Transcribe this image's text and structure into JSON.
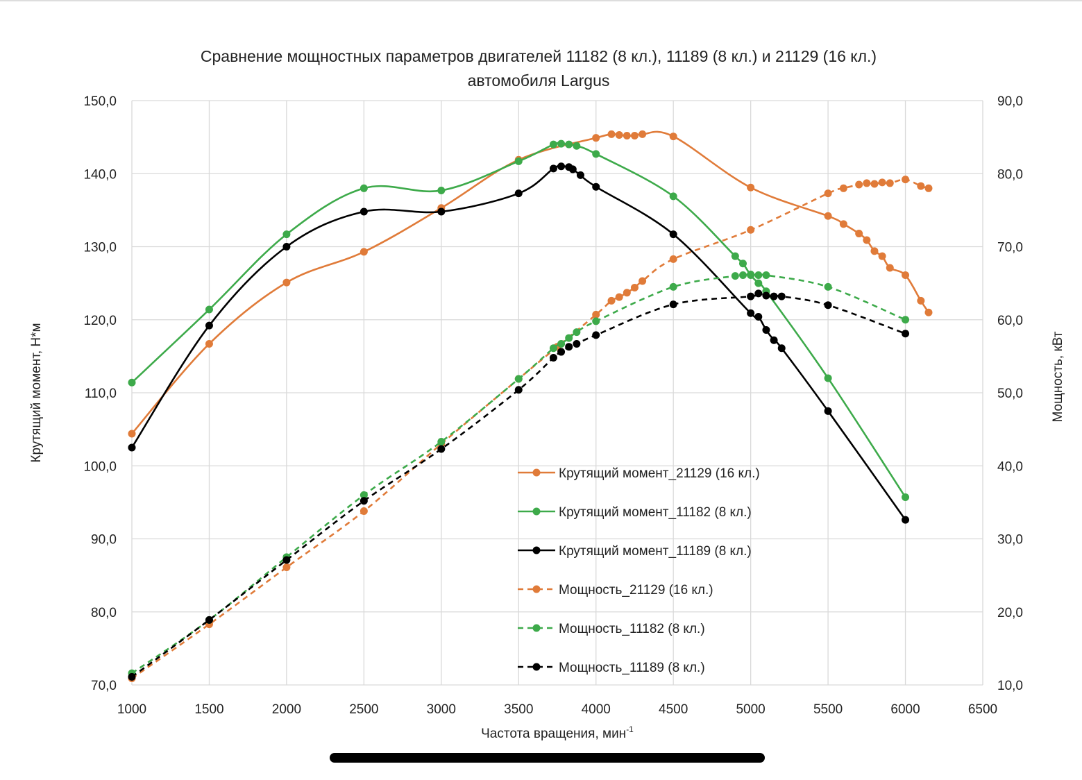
{
  "chart_data": {
    "type": "line",
    "title": [
      "Сравнение мощностных параметров двигателей 11182 (8 кл.), 11189 (8 кл.) и 21129 (16 кл.)",
      "автомобиля Largus"
    ],
    "xlabel": "Частота вращения, мин",
    "xlabel_sup": "-1",
    "ylabel": "Крутящий момент, Н*м",
    "y2label": "Мощность, кВт",
    "xlim": [
      1000,
      6500
    ],
    "ylim": [
      70,
      150
    ],
    "y2lim": [
      10,
      90
    ],
    "xticks": [
      "1000",
      "1500",
      "2000",
      "2500",
      "3000",
      "3500",
      "4000",
      "4500",
      "5000",
      "5500",
      "6000",
      "6500"
    ],
    "yticks": [
      "70,0",
      "80,0",
      "90,0",
      "100,0",
      "110,0",
      "120,0",
      "130,0",
      "140,0",
      "150,0"
    ],
    "y2ticks": [
      "10,0",
      "20,0",
      "30,0",
      "40,0",
      "50,0",
      "60,0",
      "70,0",
      "80,0",
      "90,0"
    ],
    "grid": true,
    "legend_position": "center",
    "series": [
      {
        "name": "Крутящий момент_21129 (16 кл.)",
        "axis": "left",
        "color": "#E07B39",
        "dash": false,
        "x": [
          1000,
          1500,
          2000,
          2500,
          3000,
          3500,
          4000,
          4100,
          4150,
          4200,
          4250,
          4300,
          4500,
          5000,
          5500,
          5600,
          5700,
          5750,
          5800,
          5850,
          5900,
          6000,
          6100,
          6150
        ],
        "y": [
          104.4,
          116.7,
          125.1,
          129.3,
          135.3,
          141.9,
          144.9,
          145.4,
          145.3,
          145.2,
          145.2,
          145.4,
          145.1,
          138.1,
          134.2,
          133.1,
          131.8,
          130.9,
          129.4,
          128.7,
          127.1,
          126.1,
          122.6,
          121.0
        ]
      },
      {
        "name": "Крутящий момент_11182 (8 кл.)",
        "axis": "left",
        "color": "#3DAA4A",
        "dash": false,
        "x": [
          1000,
          1500,
          2000,
          2500,
          3000,
          3500,
          3725,
          3775,
          3825,
          3875,
          4000,
          4500,
          4900,
          4950,
          5000,
          5050,
          5100,
          5500,
          6000
        ],
        "y": [
          111.4,
          121.4,
          131.7,
          138.0,
          137.7,
          141.7,
          144.0,
          144.1,
          144.0,
          143.8,
          142.7,
          136.9,
          128.7,
          127.7,
          126.1,
          125.0,
          123.9,
          112.0,
          95.7
        ]
      },
      {
        "name": "Крутящий момент_11189 (8 кл.)",
        "axis": "left",
        "color": "#000000",
        "dash": false,
        "x": [
          1000,
          1500,
          2000,
          2500,
          3000,
          3500,
          3725,
          3775,
          3825,
          3850,
          3900,
          4000,
          4500,
          5000,
          5050,
          5100,
          5150,
          5200,
          5500,
          6000
        ],
        "y": [
          102.5,
          119.2,
          130.0,
          134.8,
          134.8,
          137.3,
          140.7,
          141.0,
          140.9,
          140.6,
          139.8,
          138.2,
          131.7,
          120.9,
          120.4,
          118.6,
          117.2,
          116.1,
          107.5,
          92.6
        ]
      },
      {
        "name": "Мощность_21129 (16 кл.)",
        "axis": "right",
        "color": "#E07B39",
        "dash": true,
        "x": [
          1000,
          1500,
          2000,
          2500,
          3000,
          3500,
          3750,
          4000,
          4100,
          4150,
          4200,
          4250,
          4300,
          4500,
          5000,
          5500,
          5600,
          5700,
          5750,
          5800,
          5850,
          5900,
          6000,
          6100,
          6150
        ],
        "y": [
          10.9,
          18.3,
          26.1,
          33.8,
          43.0,
          51.9,
          56.3,
          60.7,
          62.6,
          63.1,
          63.7,
          64.4,
          65.3,
          68.3,
          72.3,
          77.3,
          78.0,
          78.5,
          78.7,
          78.6,
          78.8,
          78.7,
          79.2,
          78.3,
          78.0
        ]
      },
      {
        "name": "Мощность_11182 (8 кл.)",
        "axis": "right",
        "color": "#3DAA4A",
        "dash": true,
        "x": [
          1000,
          1500,
          2000,
          2500,
          3000,
          3500,
          3725,
          3775,
          3825,
          3875,
          4000,
          4500,
          4900,
          4950,
          5000,
          5050,
          5100,
          5500,
          6000
        ],
        "y": [
          11.6,
          18.9,
          27.5,
          36.0,
          43.3,
          51.9,
          56.1,
          56.7,
          57.5,
          58.3,
          59.8,
          64.5,
          66.0,
          66.1,
          66.2,
          66.1,
          66.1,
          64.5,
          60.0
        ]
      },
      {
        "name": "Мощность_11189 (8 кл.)",
        "axis": "right",
        "color": "#000000",
        "dash": true,
        "x": [
          1000,
          1500,
          2000,
          2500,
          3000,
          3500,
          3725,
          3775,
          3825,
          3875,
          4000,
          4500,
          5000,
          5050,
          5100,
          5150,
          5200,
          5500,
          6000
        ],
        "y": [
          11.1,
          18.9,
          27.1,
          35.2,
          42.3,
          50.4,
          54.8,
          55.6,
          56.3,
          56.7,
          57.9,
          62.1,
          63.2,
          63.6,
          63.3,
          63.2,
          63.2,
          62.0,
          58.1
        ]
      }
    ]
  }
}
